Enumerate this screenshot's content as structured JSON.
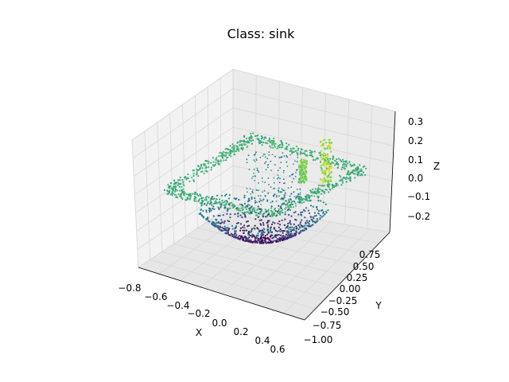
{
  "title": "Class: sink",
  "chart_data": {
    "type": "scatter",
    "projection": "3d",
    "title": "Class: sink",
    "xlabel": "X",
    "ylabel": "Y",
    "zlabel": "Z",
    "xlim": [
      -0.8,
      0.65
    ],
    "ylim": [
      -1.0,
      0.85
    ],
    "zlim": [
      -0.28,
      0.33
    ],
    "xticks": [
      "−0.8",
      "−0.6",
      "−0.4",
      "−0.2",
      "0.0",
      "0.2",
      "0.4",
      "0.6"
    ],
    "yticks": [
      "−1.00",
      "−0.75",
      "−0.50",
      "−0.25",
      "0.00",
      "0.25",
      "0.50",
      "0.75"
    ],
    "zticks": [
      "−0.2",
      "−0.1",
      "0.0",
      "0.1",
      "0.2",
      "0.3"
    ],
    "colormap": "viridis",
    "color_by": "z",
    "grid": true,
    "points_description": "point cloud of a sink: rectangular rim near z≈0.1 to 0.15 with a parabolic basin descending to z≈-0.25 and a faucet rising to z≈0.3 at the back right"
  },
  "colors": {
    "pane": "#f2f2f2",
    "grid": "#d9d9d9",
    "viridis_low": "#440154",
    "viridis_mid": "#21918c",
    "viridis_high": "#fde725"
  }
}
